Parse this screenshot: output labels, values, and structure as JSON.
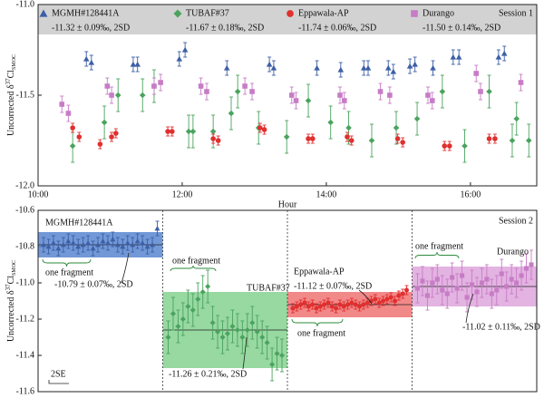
{
  "chart_data": [
    {
      "type": "scatter",
      "session": "Session 1",
      "x_label": "Hour",
      "y_label": {
        "prefix": "Uncorrected δ",
        "sup": "37",
        "main": "Cl",
        "sub": "SMOC"
      },
      "xlim": [
        10,
        16.92
      ],
      "xticks": [
        {
          "value": 10,
          "label": "10:00"
        },
        {
          "value": 12,
          "label": "12:00"
        },
        {
          "value": 14,
          "label": "14:00"
        },
        {
          "value": 16,
          "label": "16:00"
        }
      ],
      "ylim": [
        -12,
        -11
      ],
      "yticks": [
        {
          "value": -12,
          "label": "-12.0"
        },
        -11.5,
        {
          "value": -11,
          "label": "-11.0"
        }
      ],
      "series": [
        {
          "name": "MGMH#128441A",
          "stats": "-11.32 ± 0.09‰, 2SD",
          "color": "#3d5fa6",
          "marker": "triangle",
          "error": 0.04,
          "x": [
            10.67,
            10.74,
            11.32,
            11.38,
            11.96,
            12.04,
            12.62,
            13.21,
            13.27,
            13.87,
            14.2,
            14.52,
            14.58,
            14.86,
            14.93,
            15.16,
            15.23,
            15.48,
            15.76,
            15.84,
            16.39,
            16.47
          ],
          "values": [
            -11.3,
            -11.32,
            -11.33,
            -11.33,
            -11.3,
            -11.25,
            -11.35,
            -11.33,
            -11.35,
            -11.35,
            -11.36,
            -11.35,
            -11.35,
            -11.35,
            -11.37,
            -11.34,
            -11.33,
            -11.35,
            -11.29,
            -11.29,
            -11.29,
            -11.27
          ]
        },
        {
          "name": "TUBAF#37",
          "stats": "-11.67 ± 0.18‰, 2SD",
          "color": "#4aa35e",
          "marker": "diamond",
          "error": 0.09,
          "x": [
            10.48,
            10.92,
            11.11,
            11.45,
            11.61,
            12.09,
            12.15,
            12.43,
            12.68,
            12.77,
            13.06,
            13.45,
            13.75,
            14.06,
            14.31,
            14.63,
            14.97,
            15.26,
            15.61,
            15.92,
            16.26,
            16.58,
            16.64,
            16.81
          ],
          "values": [
            -11.78,
            -11.65,
            -11.5,
            -11.5,
            -11.45,
            -11.7,
            -11.7,
            -11.7,
            -11.6,
            -11.48,
            -11.68,
            -11.73,
            -11.53,
            -11.65,
            -11.68,
            -11.75,
            -11.68,
            -11.63,
            -11.48,
            -11.78,
            -11.48,
            -11.75,
            -11.63,
            -11.75
          ]
        },
        {
          "name": "Eppawala-AP",
          "stats": "-11.74 ± 0.06‰, 2SD",
          "color": "#e0302f",
          "marker": "circle",
          "error": 0.025,
          "x": [
            10.48,
            10.57,
            10.86,
            11.02,
            11.08,
            11.8,
            11.86,
            12.43,
            12.5,
            13.08,
            13.14,
            13.75,
            13.81,
            14.29,
            14.35,
            14.99,
            15.06,
            15.64,
            15.71,
            16.26,
            16.34
          ],
          "values": [
            -11.68,
            -11.73,
            -11.77,
            -11.73,
            -11.71,
            -11.7,
            -11.7,
            -11.74,
            -11.75,
            -11.68,
            -11.69,
            -11.74,
            -11.74,
            -11.73,
            -11.75,
            -11.74,
            -11.76,
            -11.78,
            -11.78,
            -11.74,
            -11.74
          ]
        },
        {
          "name": "Durango",
          "stats": "-11.50 ± 0.14‰, 2SD",
          "color": "#c77cc6",
          "marker": "square",
          "error": 0.045,
          "x": [
            10.33,
            10.42,
            10.96,
            11.02,
            11.61,
            11.7,
            12.26,
            12.34,
            12.87,
            12.97,
            13.52,
            13.58,
            14.19,
            14.25,
            14.75,
            14.88,
            15.41,
            15.47,
            16.08,
            16.14,
            16.7
          ],
          "values": [
            -11.55,
            -11.6,
            -11.45,
            -11.5,
            -11.45,
            -11.43,
            -11.45,
            -11.48,
            -11.45,
            -11.48,
            -11.5,
            -11.53,
            -11.5,
            -11.53,
            -11.48,
            -11.5,
            -11.5,
            -11.53,
            -11.38,
            -11.48,
            -11.43
          ]
        }
      ]
    },
    {
      "type": "dotplot",
      "session": "Session 2",
      "scale_bar": "2SE",
      "y_label": {
        "prefix": "Uncorrected δ",
        "sup": "37",
        "main": "Cl",
        "sub": "SMOC"
      },
      "ylim": [
        -11.6,
        -10.6
      ],
      "yticks": [
        -11.6,
        -11.4,
        -11.2,
        {
          "value": -11,
          "label": "-11.0"
        },
        -10.8,
        -10.6
      ],
      "groups": [
        {
          "name": "MGMH#128441A",
          "label": "-10.79 ± 0.07‰, 2SD",
          "note": "one fragment",
          "mean": -10.79,
          "two_sd": 0.07,
          "color": "#3d5fa6",
          "band_color": "#5a86d0",
          "marker": "triangle",
          "error": 0.04,
          "values": [
            -10.79,
            -10.8,
            -10.78,
            -10.81,
            -10.79,
            -10.77,
            -10.78,
            -10.8,
            -10.79,
            -10.78,
            -10.81,
            -10.79,
            -10.77,
            -10.78,
            -10.76,
            -10.79,
            -10.8,
            -10.78,
            -10.79,
            -10.77,
            -10.78,
            -10.8,
            -10.79,
            -10.7
          ]
        },
        {
          "name": "TUBAF#37",
          "label": "-11.26 ± 0.21‰, 2SD",
          "note": "one fragment",
          "mean": -11.26,
          "two_sd": 0.21,
          "color": "#4aa35e",
          "band_color": "#86d190",
          "marker": "diamond",
          "error": 0.09,
          "values": [
            -11.3,
            -11.17,
            -11.24,
            -11.2,
            -11.13,
            -11.15,
            -11.09,
            -11.05,
            -11.02,
            -11.22,
            -11.27,
            -11.3,
            -11.28,
            -11.24,
            -11.26,
            -11.3,
            -11.26,
            -11.22,
            -11.27,
            -11.3,
            -11.33,
            -11.45,
            -11.39,
            -11.4
          ]
        },
        {
          "name": "Eppawala-AP",
          "label": "-11.12 ± 0.07‰, 2SD",
          "note": "one fragment",
          "mean": -11.12,
          "two_sd": 0.07,
          "color": "#e0302f",
          "band_color": "#f07474",
          "marker": "circle",
          "error": 0.025,
          "values": [
            -11.14,
            -11.13,
            -11.12,
            -11.11,
            -11.13,
            -11.12,
            -11.14,
            -11.13,
            -11.12,
            -11.11,
            -11.13,
            -11.14,
            -11.12,
            -11.13,
            -11.12,
            -11.11,
            -11.12,
            -11.13,
            -11.12,
            -11.11,
            -11.1,
            -11.09,
            -11.11,
            -11.1,
            -11.09,
            -11.08,
            -11.1,
            -11.07,
            -11.06,
            -11.04
          ]
        },
        {
          "name": "Durango",
          "label": "-11.02 ± 0.11‰, 2SD",
          "note": "one fragment",
          "mean": -11.02,
          "two_sd": 0.11,
          "color": "#c77cc6",
          "band_color": "#dea6dc",
          "marker": "square",
          "error": 0.08,
          "values": [
            -11.03,
            -10.99,
            -11.07,
            -11.0,
            -10.98,
            -11.04,
            -11.06,
            -10.97,
            -11.03,
            -10.96,
            -11.08,
            -11.01,
            -11.05,
            -11.0,
            -10.98,
            -11.06,
            -11.04,
            -10.95,
            -11.02,
            -10.98,
            -11.0,
            -10.96,
            -10.92,
            -10.9
          ]
        }
      ]
    }
  ]
}
